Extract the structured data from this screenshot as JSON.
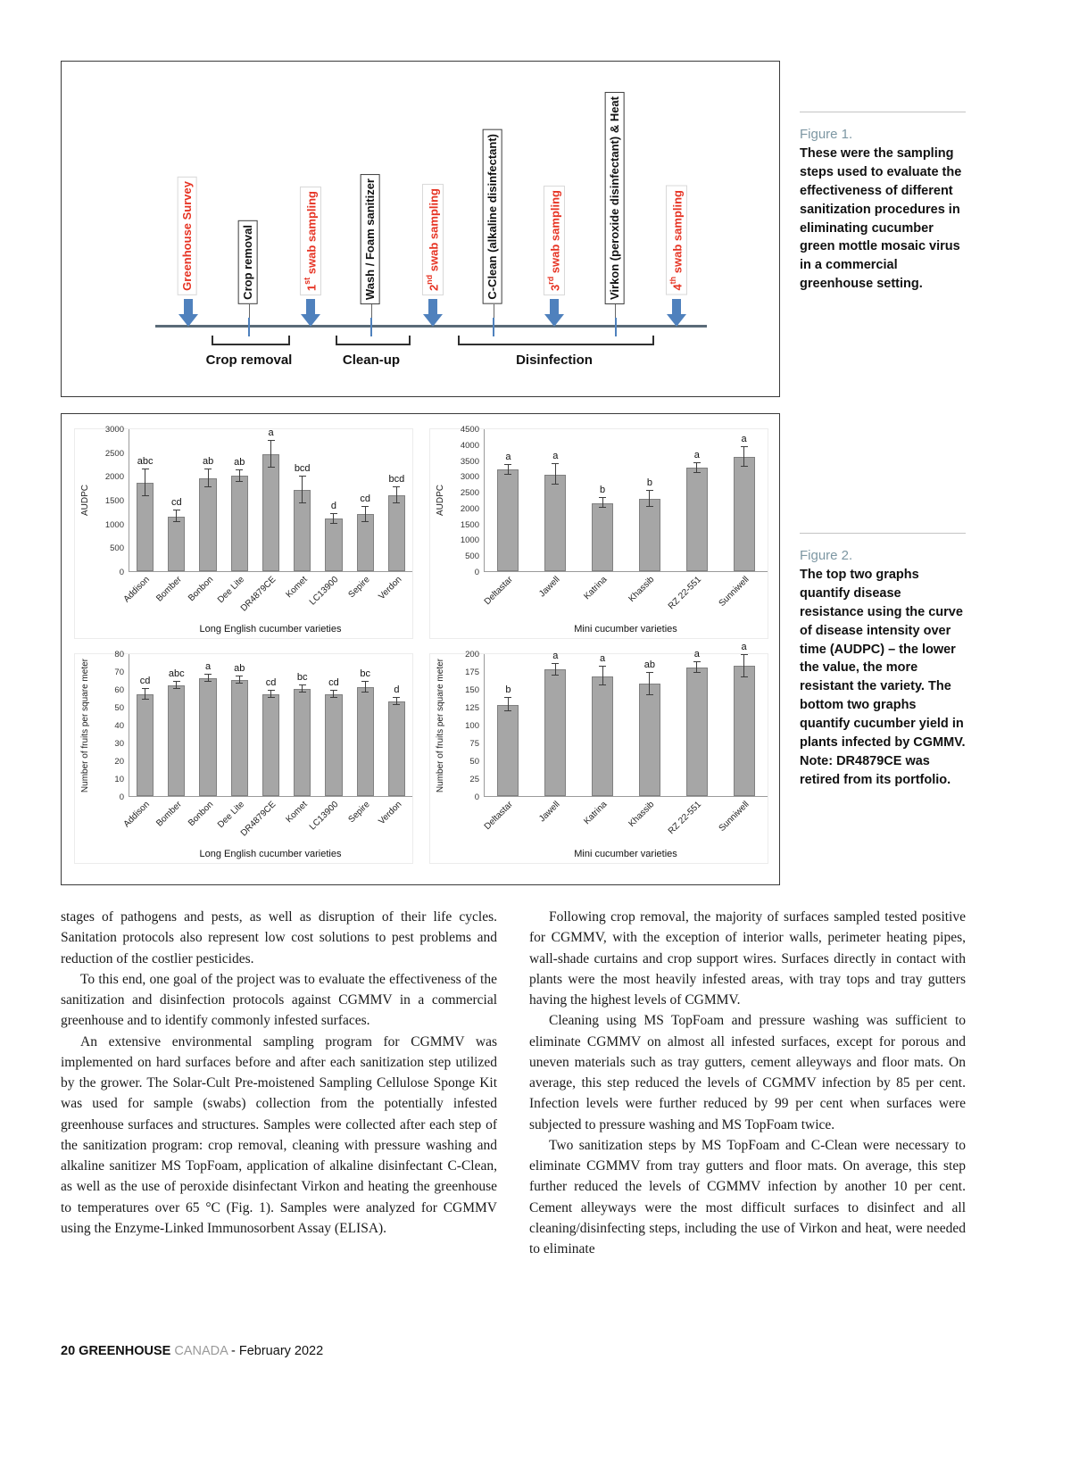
{
  "colors": {
    "sampling_red": "#e63323",
    "arrow_blue": "#4f81bd",
    "bar_fill": "#a6a6a6",
    "bar_border": "#808080",
    "caption_label": "#7d97a3",
    "footer_gray": "#9a9a9a"
  },
  "figure1": {
    "caption_label": "Figure 1.",
    "caption_text": "These were the sampling steps used to evaluate the effectiveness of different sanitization procedures in eliminating cucumber green mottle mosaic virus in a commercial greenhouse setting.",
    "steps": [
      {
        "label": "Greenhouse Survey",
        "type": "sampling"
      },
      {
        "label": "Crop removal",
        "type": "action"
      },
      {
        "label": "1st swab sampling",
        "type": "sampling"
      },
      {
        "label": "Wash / Foam sanitizer",
        "type": "action"
      },
      {
        "label": "2nd swab sampling",
        "type": "sampling"
      },
      {
        "label": "C-Clean (alkaline disinfectant)",
        "type": "action"
      },
      {
        "label": "3rd swab sampling",
        "type": "sampling"
      },
      {
        "label": "Virkon (peroxide disinfectant) & Heat",
        "type": "action"
      },
      {
        "label": "4th swab sampling",
        "type": "sampling"
      }
    ],
    "groups": [
      {
        "label": "Crop removal"
      },
      {
        "label": "Clean-up"
      },
      {
        "label": "Disinfection"
      }
    ]
  },
  "figure2": {
    "caption_label": "Figure 2.",
    "caption_text": "The top two graphs quantify disease resistance using the curve of disease intensity over time (AUDPC) – the lower the value, the more resistant the variety. The bottom two graphs quantify cucumber yield in plants infected by CGMMV. Note: DR4879CE was retired from its portfolio."
  },
  "chart_data": [
    {
      "type": "bar",
      "title": "",
      "ylabel": "AUDPC",
      "xlabel": "Long English cucumber varieties",
      "ylim": [
        0,
        3000
      ],
      "ytick_step": 500,
      "grid": false,
      "legend": false,
      "categories": [
        "Addison",
        "Bomber",
        "Bonbon",
        "Dee Lite",
        "DR4879CE",
        "Komet",
        "LC13900",
        "Sepire",
        "Verdon"
      ],
      "values": [
        1850,
        1150,
        1950,
        2000,
        2450,
        1700,
        1100,
        1200,
        1600
      ],
      "errors": [
        280,
        120,
        180,
        120,
        280,
        280,
        110,
        160,
        170
      ],
      "letters": [
        "abc",
        "cd",
        "ab",
        "ab",
        "a",
        "bcd",
        "d",
        "cd",
        "bcd"
      ]
    },
    {
      "type": "bar",
      "title": "",
      "ylabel": "AUDPC",
      "xlabel": "Mini cucumber varieties",
      "ylim": [
        0,
        4500
      ],
      "ytick_step": 500,
      "grid": false,
      "legend": false,
      "categories": [
        "Deltastar",
        "Jawell",
        "Katrina",
        "Khassib",
        "RZ 22-551",
        "Sunniwell"
      ],
      "values": [
        3200,
        3050,
        2150,
        2280,
        3250,
        3600
      ],
      "errors": [
        160,
        320,
        160,
        260,
        160,
        310
      ],
      "letters": [
        "a",
        "a",
        "b",
        "b",
        "a",
        "a"
      ]
    },
    {
      "type": "bar",
      "title": "",
      "ylabel": "Number of fruits per square meter",
      "xlabel": "Long English cucumber varieties",
      "ylim": [
        0,
        80
      ],
      "ytick_step": 10,
      "grid": false,
      "legend": false,
      "categories": [
        "Addison",
        "Bomber",
        "Bonbon",
        "Dee Lite",
        "DR4879CE",
        "Komet",
        "LC13900",
        "Sepire",
        "Verdon"
      ],
      "values": [
        57,
        62,
        66,
        65,
        57,
        60,
        57,
        61,
        53
      ],
      "errors": [
        3,
        2,
        2,
        2,
        2,
        2,
        2,
        3,
        2
      ],
      "letters": [
        "cd",
        "abc",
        "a",
        "ab",
        "cd",
        "bc",
        "cd",
        "bc",
        "d"
      ]
    },
    {
      "type": "bar",
      "title": "",
      "ylabel": "Number of fruits per square meter",
      "xlabel": "Mini cucumber varieties",
      "ylim": [
        0,
        200
      ],
      "ytick_step": 25,
      "grid": false,
      "legend": false,
      "categories": [
        "Deltastar",
        "Jawell",
        "Katrina",
        "Khassib",
        "RZ 22-551",
        "Sunniwell"
      ],
      "values": [
        128,
        177,
        168,
        157,
        180,
        182
      ],
      "errors": [
        9,
        8,
        13,
        16,
        8,
        16
      ],
      "letters": [
        "b",
        "a",
        "a",
        "ab",
        "a",
        "a"
      ]
    }
  ],
  "article": {
    "left_column": [
      "stages of pathogens and pests, as well as disruption of their life cycles. Sanitation protocols also represent low cost solutions to pest problems and reduction of the costlier pesticides.",
      "To this end, one goal of the project was to evaluate the effectiveness of the sanitization and disinfection protocols against CGMMV in a commercial greenhouse and to identify commonly infested surfaces.",
      "An extensive environmental sampling program for CGMMV was implemented on hard surfaces before and after each sanitization step utilized by the grower. The Solar-Cult Pre-moistened Sampling Cellulose Sponge Kit was used for sample (swabs) collection from the potentially infested greenhouse surfaces and structures. Samples were collected after each step of the sanitization program: crop removal, cleaning with pressure washing and alkaline sanitizer MS TopFoam, application of alkaline disinfectant C-Clean, as well as the use of peroxide disinfectant Virkon and heating the greenhouse to temperatures over 65 °C (Fig. 1). Samples were analyzed for CGMMV using the Enzyme-Linked Immunosorbent Assay (ELISA)."
    ],
    "right_column": [
      "Following crop removal, the majority of surfaces sampled tested positive for CGMMV, with the exception of interior walls, perimeter heating pipes, wall-shade curtains and crop support wires. Surfaces directly in contact with plants were the most heavily infested areas, with tray tops and tray gutters having the highest levels of CGMMV.",
      "Cleaning using MS TopFoam and pressure washing was sufficient to eliminate CGMMV on almost all infested surfaces, except for porous and uneven materials such as tray gutters, cement alleyways and floor mats. On average, this step reduced the levels of CGMMV infection by 85 per cent. Infection levels were further reduced by 99 per cent when surfaces were subjected to pressure washing and MS TopFoam twice.",
      "Two sanitization steps by MS TopFoam and C-Clean were necessary to eliminate CGMMV from tray gutters and floor mats. On average, this step further reduced the levels of CGMMV infection by another 10 per cent. Cement alleyways were the most difficult surfaces to disinfect and all cleaning/disinfecting steps, including the use of Virkon and heat, were needed to eliminate"
    ]
  },
  "footer": {
    "page_number": "20",
    "magazine_bold": "GREENHOUSE",
    "magazine_light": "CANADA",
    "issue": "- February 2022"
  }
}
